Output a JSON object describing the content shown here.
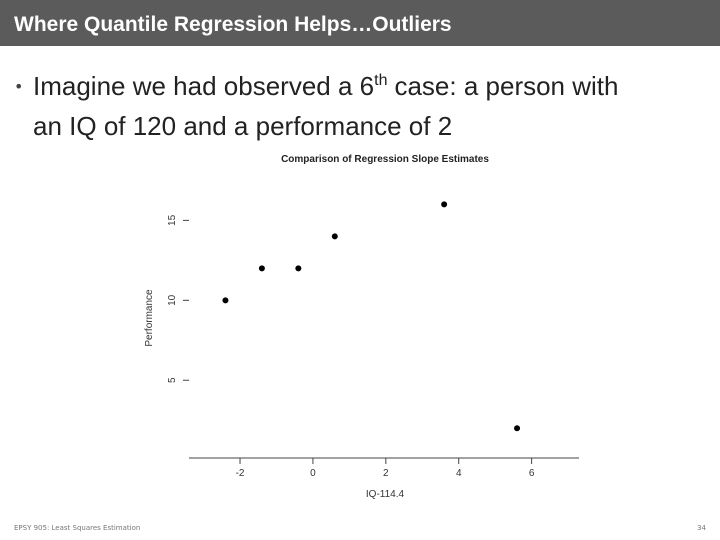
{
  "header": {
    "title": "Where Quantile Regression Helps…Outliers"
  },
  "bullet": {
    "text": "Imagine we had observed a 6",
    "sup": "th",
    "text_cont": "case: a person with",
    "line2": "an IQ of 120 and a performance of 2"
  },
  "chart_data": {
    "type": "scatter",
    "title": "Comparison of Regression Slope Estimates",
    "x_label": "IQ-114.4",
    "y_label": "Performance",
    "x": [
      -2.4,
      -1.4,
      -0.4,
      0.6,
      3.6,
      5.6
    ],
    "values": [
      10,
      12,
      12,
      14,
      16,
      2
    ],
    "color": "#000000",
    "xlim": [
      -3.4,
      7.3
    ],
    "xticks": [
      -2,
      0,
      2,
      4,
      6
    ],
    "ylim": [
      0.2,
      16.9
    ],
    "yticks": [
      5,
      10,
      15
    ]
  },
  "footer": {
    "left": "EPSY 905: Least Squares Estimation",
    "page": "34"
  }
}
